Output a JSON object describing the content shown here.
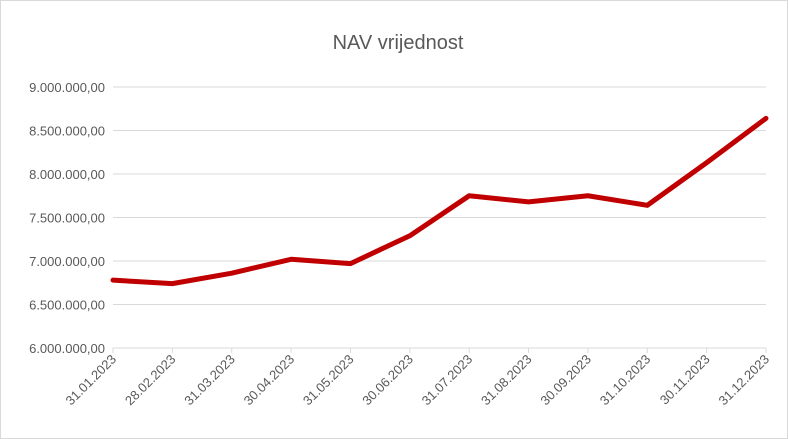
{
  "chart_data": {
    "type": "line",
    "title": "NAV vrijednost",
    "categories": [
      "31.01.2023",
      "28.02.2023",
      "31.03.2023",
      "30.04.2023",
      "31.05.2023",
      "30.06.2023",
      "31.07.2023",
      "31.08.2023",
      "30.09.2023",
      "31.10.2023",
      "30.11.2023",
      "31.12.2023"
    ],
    "series": [
      {
        "name": "NAV vrijednost",
        "color": "#c00000",
        "values": [
          6780000,
          6740000,
          6860000,
          7020000,
          6970000,
          7290000,
          7750000,
          7680000,
          7750000,
          7640000,
          8130000,
          8640000
        ]
      }
    ],
    "ylim": [
      6000000,
      9000000
    ],
    "yticks": [
      {
        "value": 6000000,
        "label": "6.000.000,00"
      },
      {
        "value": 6500000,
        "label": "6.500.000,00"
      },
      {
        "value": 7000000,
        "label": "7.000.000,00"
      },
      {
        "value": 7500000,
        "label": "7.500.000,00"
      },
      {
        "value": 8000000,
        "label": "8.000.000,00"
      },
      {
        "value": 8500000,
        "label": "8.500.000,00"
      },
      {
        "value": 9000000,
        "label": "9.000.000,00"
      }
    ],
    "grid": true
  }
}
